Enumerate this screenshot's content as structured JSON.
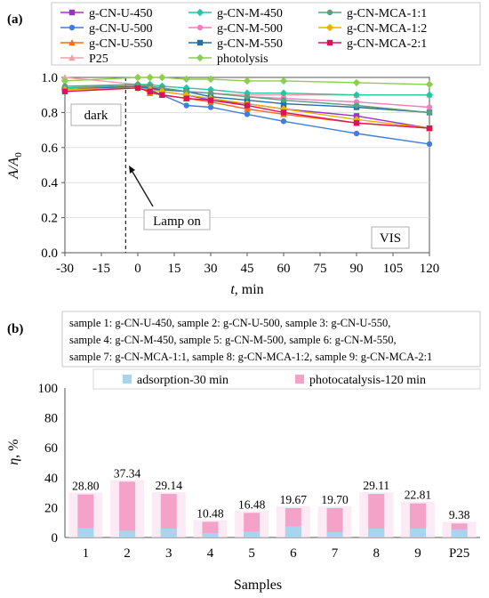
{
  "chart_data": [
    {
      "panel": "(a)",
      "type": "line",
      "xlabel": "t, min",
      "ylabel": "A/A0",
      "ylabel_main": "A/A",
      "ylabel_sub": "0",
      "xlim": [
        -30,
        120
      ],
      "ylim": [
        0.0,
        1.0
      ],
      "x_ticks": [
        -30,
        -15,
        0,
        15,
        30,
        45,
        60,
        75,
        90,
        105,
        120
      ],
      "x_tick_labels": [
        "-30",
        "-15",
        "0",
        "15",
        "30",
        "45",
        "60",
        "75",
        "90",
        "105",
        "120"
      ],
      "y_ticks": [
        0.0,
        0.2,
        0.4,
        0.6,
        0.8,
        1.0
      ],
      "y_tick_labels": [
        "0.0",
        "0.2",
        "0.4",
        "0.6",
        "0.8",
        "1.0"
      ],
      "legend_placement": "top",
      "annotations": {
        "dark": "dark",
        "lamp_on": "Lamp on",
        "vis": "VIS",
        "lamp_on_time": -5
      },
      "x": [
        -30,
        0,
        5,
        10,
        20,
        30,
        45,
        60,
        90,
        120
      ],
      "series": [
        {
          "name": "g-CN-U-450",
          "color": "#9b30d0",
          "marker": "square",
          "values": [
            0.93,
            0.95,
            0.94,
            0.92,
            0.9,
            0.87,
            0.85,
            0.82,
            0.78,
            0.71
          ]
        },
        {
          "name": "g-CN-U-500",
          "color": "#3f7fd9",
          "marker": "circle",
          "values": [
            0.93,
            0.95,
            0.93,
            0.9,
            0.84,
            0.83,
            0.79,
            0.75,
            0.68,
            0.62
          ]
        },
        {
          "name": "g-CN-U-550",
          "color": "#ff6a13",
          "marker": "triangle",
          "values": [
            0.94,
            0.95,
            0.91,
            0.9,
            0.88,
            0.86,
            0.82,
            0.79,
            0.74,
            0.71
          ]
        },
        {
          "name": "P25",
          "color": "#f4a0a8",
          "marker": "triangle",
          "values": [
            1.0,
            0.96,
            0.95,
            0.94,
            0.92,
            0.91,
            0.9,
            0.9,
            0.9,
            0.9
          ]
        },
        {
          "name": "g-CN-M-450",
          "color": "#21c8a4",
          "marker": "diamond",
          "values": [
            0.94,
            0.96,
            0.96,
            0.95,
            0.94,
            0.93,
            0.91,
            0.91,
            0.9,
            0.9
          ]
        },
        {
          "name": "g-CN-M-500",
          "color": "#f07ec0",
          "marker": "circle",
          "values": [
            0.93,
            0.95,
            0.95,
            0.93,
            0.92,
            0.91,
            0.89,
            0.88,
            0.86,
            0.83
          ]
        },
        {
          "name": "g-CN-M-550",
          "color": "#1f6fa8",
          "marker": "square",
          "values": [
            0.93,
            0.95,
            0.94,
            0.93,
            0.92,
            0.89,
            0.87,
            0.85,
            0.83,
            0.8
          ]
        },
        {
          "name": "photolysis",
          "color": "#8bcf4a",
          "marker": "diamond",
          "values": [
            0.98,
            1.0,
            1.0,
            1.0,
            0.99,
            0.99,
            0.98,
            0.98,
            0.97,
            0.96
          ]
        },
        {
          "name": "g-CN-MCA-1:1",
          "color": "#5e9f7e",
          "marker": "circle",
          "values": [
            0.95,
            0.96,
            0.95,
            0.94,
            0.92,
            0.91,
            0.89,
            0.87,
            0.84,
            0.8
          ]
        },
        {
          "name": "g-CN-MCA-1:2",
          "color": "#e8b300",
          "marker": "diamond",
          "values": [
            0.93,
            0.94,
            0.93,
            0.92,
            0.9,
            0.88,
            0.85,
            0.82,
            0.76,
            0.71
          ]
        },
        {
          "name": "g-CN-MCA-2:1",
          "color": "#e0105a",
          "marker": "square",
          "values": [
            0.92,
            0.94,
            0.92,
            0.9,
            0.88,
            0.87,
            0.84,
            0.8,
            0.74,
            0.71
          ]
        }
      ]
    },
    {
      "panel": "(b)",
      "type": "bar",
      "xlabel": "Samples",
      "ylabel": "η, %",
      "ylabel_main": "η",
      "ylabel_rest": ", %",
      "ylim": [
        0,
        100
      ],
      "y_ticks": [
        0,
        20,
        40,
        60,
        80,
        100
      ],
      "y_tick_labels": [
        "0",
        "20",
        "40",
        "60",
        "80",
        "100"
      ],
      "sample_key": [
        "sample 1: g-CN-U-450, sample 2: g-CN-U-500, sample 3: g-CN-U-550,",
        "sample 4: g-CN-M-450, sample 5: g-CN-M-500, sample 6: g-CN-M-550,",
        "sample 7: g-CN-MCA-1:1, sample 8: g-CN-MCA-1:2, sample 9: g-CN-MCA-2:1"
      ],
      "legend_placement": "top",
      "categories": [
        "1",
        "2",
        "3",
        "4",
        "5",
        "6",
        "7",
        "8",
        "9",
        "P25"
      ],
      "series": [
        {
          "name": "adsorption-30 min",
          "color": "#a8d4ee",
          "values": [
            6.5,
            4.5,
            6.0,
            3.0,
            4.0,
            7.5,
            3.5,
            6.0,
            6.0,
            5.5
          ]
        },
        {
          "name": "photocatalysis-120 min",
          "color": "#f5a2c8",
          "values": [
            28.8,
            37.34,
            29.14,
            10.48,
            16.48,
            19.67,
            19.7,
            29.11,
            22.81,
            9.38
          ]
        }
      ],
      "data_labels": [
        "28.80",
        "37.34",
        "29.14",
        "10.48",
        "16.48",
        "19.67",
        "19.70",
        "29.11",
        "22.81",
        "9.38"
      ]
    }
  ]
}
